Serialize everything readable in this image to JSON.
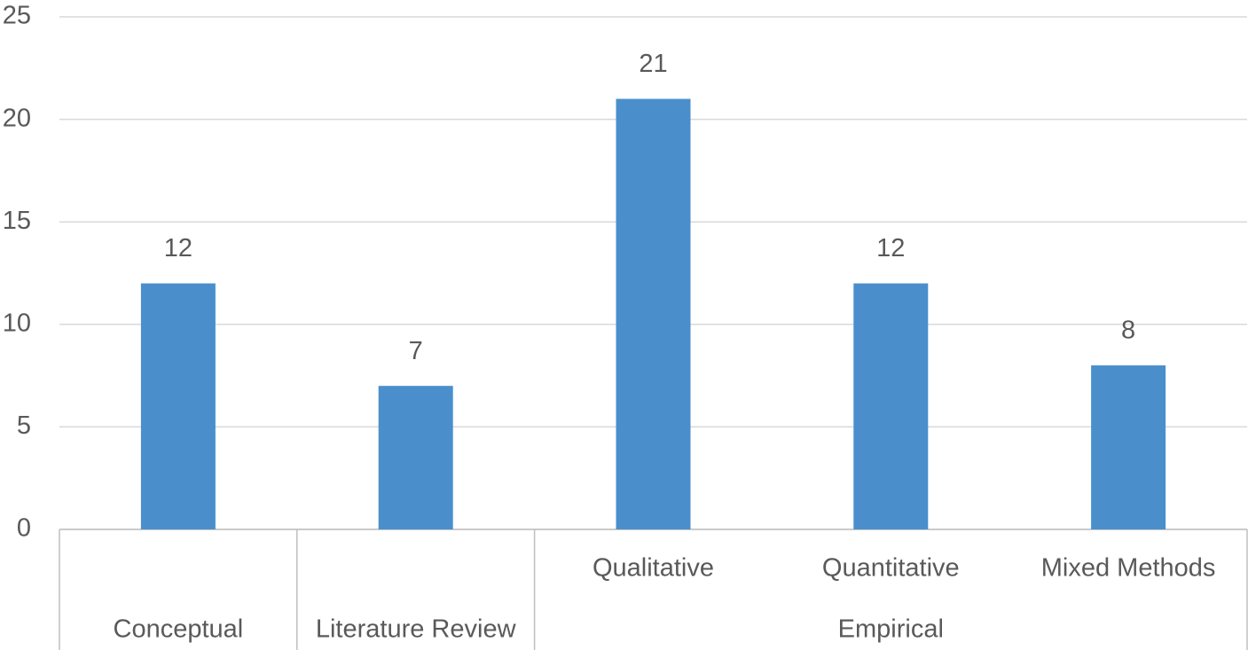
{
  "chart_data": {
    "type": "bar",
    "categories": [
      null,
      null,
      "Qualitative",
      "Quantitative",
      "Mixed Methods"
    ],
    "groups": [
      {
        "name": "Conceptual",
        "size": 1
      },
      {
        "name": "Literature Review",
        "size": 1
      },
      {
        "name": "Empirical",
        "size": 3
      }
    ],
    "values": [
      12,
      7,
      21,
      12,
      8
    ],
    "color": "#4a8fcc",
    "ylim": [
      0,
      25
    ],
    "yticks": [
      0,
      5,
      10,
      15,
      20,
      25
    ],
    "grid": true
  }
}
